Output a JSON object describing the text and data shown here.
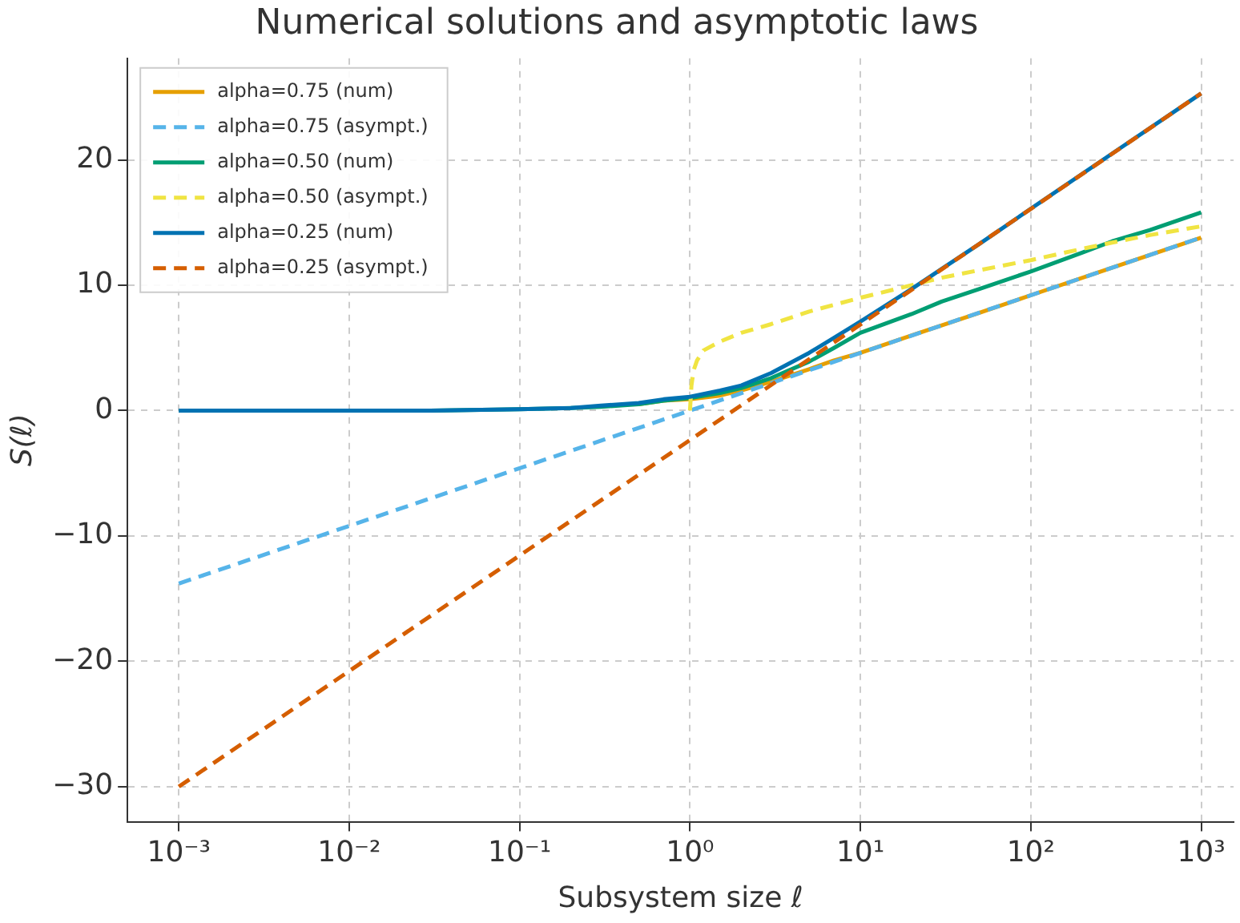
{
  "chart_data": {
    "type": "line",
    "title": "Numerical solutions and asymptotic laws",
    "xlabel": "Subsystem size ℓ",
    "ylabel": "S(ℓ)",
    "log": "x",
    "xlim": [
      0.0005,
      1550
    ],
    "xticks": [
      {
        "value": 0.001,
        "label": "10⁻³"
      },
      {
        "value": 0.01,
        "label": "10⁻²"
      },
      {
        "value": 0.1,
        "label": "10⁻¹"
      },
      {
        "value": 1,
        "label": "10⁰"
      },
      {
        "value": 10,
        "label": "10¹"
      },
      {
        "value": 100,
        "label": "10²"
      },
      {
        "value": 1000,
        "label": "10³"
      }
    ],
    "ylim": [
      -32.8,
      28.1
    ],
    "yticks": [
      -30,
      -20,
      -10,
      0,
      10,
      20
    ],
    "grid": true,
    "legend": "top left",
    "marker": "none",
    "series": [
      {
        "name": "alpha=0.75 (num)",
        "color": "#e69f00",
        "line_style": "solid",
        "x": [
          0.5,
          0.7,
          1,
          1.5,
          2,
          3,
          5,
          7,
          10,
          20,
          50,
          100,
          300,
          1000
        ],
        "values": [
          0.5,
          0.8,
          0.9,
          1.2,
          1.6,
          2.3,
          3.3,
          4.0,
          4.6,
          6.0,
          7.8,
          9.2,
          11.4,
          13.8
        ]
      },
      {
        "name": "alpha=0.75 (asympt.)",
        "color": "#56b4e9",
        "line_style": "dashed",
        "x": [
          0.001,
          1000
        ],
        "values": [
          -13.8,
          13.8
        ]
      },
      {
        "name": "alpha=0.50 (num)",
        "color": "#009e73",
        "line_style": "solid",
        "x": [
          0.001,
          0.01,
          0.03,
          0.1,
          0.2,
          0.3,
          0.5,
          0.7,
          1,
          1.5,
          2,
          3,
          5,
          7,
          10,
          20,
          30,
          50,
          100,
          200,
          300,
          500,
          1000
        ],
        "values": [
          0,
          0,
          0,
          0.1,
          0.2,
          0.3,
          0.5,
          0.8,
          1.0,
          1.4,
          1.8,
          2.6,
          3.9,
          5.0,
          6.2,
          7.7,
          8.7,
          9.7,
          11.1,
          12.6,
          13.5,
          14.4,
          15.8
        ]
      },
      {
        "name": "alpha=0.50 (asympt.)",
        "color": "#f0e442",
        "line_style": "dashed",
        "x": [
          1,
          1.02,
          1.05,
          1.1,
          1.2,
          1.5,
          2,
          3,
          5,
          10,
          20,
          30,
          50,
          100,
          200,
          300,
          500,
          1000
        ],
        "values": [
          0,
          2.0,
          3.2,
          4.0,
          4.8,
          5.5,
          6.2,
          6.9,
          7.9,
          9.0,
          10.0,
          10.6,
          11.2,
          12.0,
          12.9,
          13.4,
          14.0,
          14.7
        ]
      },
      {
        "name": "alpha=0.25 (num)",
        "color": "#0072b2",
        "line_style": "solid",
        "x": [
          0.001,
          0.01,
          0.03,
          0.1,
          0.2,
          0.3,
          0.5,
          0.7,
          1,
          1.5,
          2,
          3,
          5,
          7,
          10,
          20,
          30,
          50,
          100,
          300,
          1000
        ],
        "values": [
          0,
          0,
          0,
          0.1,
          0.2,
          0.4,
          0.6,
          0.9,
          1.1,
          1.6,
          2.0,
          3.0,
          4.6,
          5.8,
          7.1,
          9.7,
          11.3,
          13.3,
          16.1,
          20.5,
          25.3
        ]
      },
      {
        "name": "alpha=0.25 (asympt.)",
        "color": "#d55e00",
        "line_style": "dashed",
        "x": [
          0.001,
          1000
        ],
        "values": [
          -30,
          25.3
        ]
      }
    ]
  }
}
